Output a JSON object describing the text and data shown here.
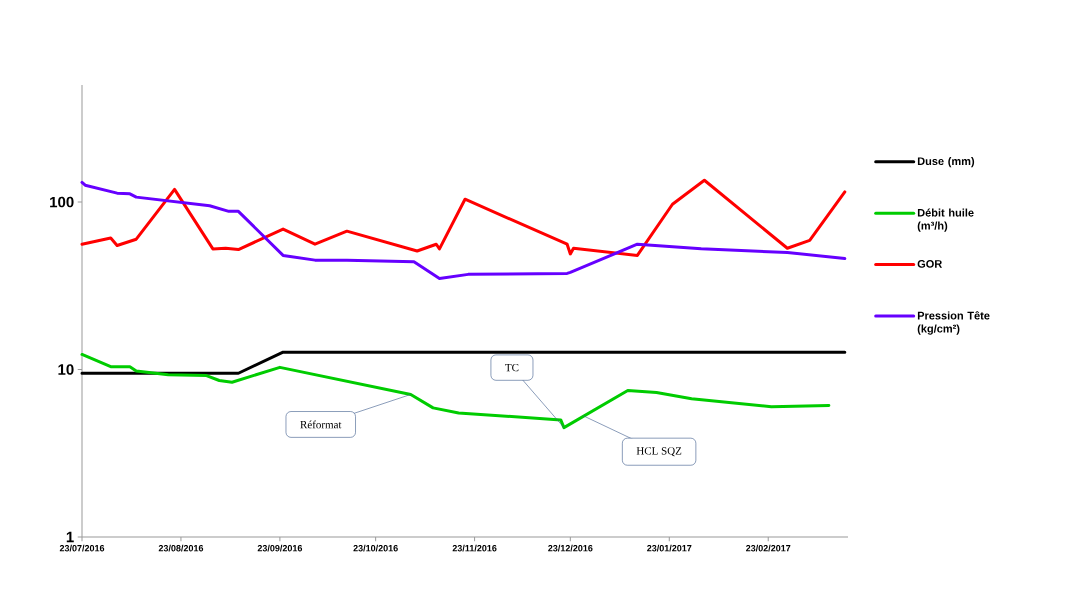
{
  "chart_data": {
    "type": "line",
    "log": "y",
    "legend": "right",
    "grid": false,
    "marker": "none",
    "line_style": "solid",
    "xlim": [
      "2016-07-23",
      "2017-03-20"
    ],
    "ylim": [
      1,
      500
    ],
    "yticks": [
      1,
      10,
      100
    ],
    "xticks": [
      {
        "value": "2016-07-23",
        "label": "23/07/2016"
      },
      {
        "value": "2016-08-23",
        "label": "23/08/2016"
      },
      {
        "value": "2016-09-23",
        "label": "23/09/2016"
      },
      {
        "value": "2016-10-23",
        "label": "23/10/2016"
      },
      {
        "value": "2016-11-23",
        "label": "23/11/2016"
      },
      {
        "value": "2016-12-23",
        "label": "23/12/2016"
      },
      {
        "value": "2017-01-23",
        "label": "23/01/2017"
      },
      {
        "value": "2017-02-23",
        "label": "23/02/2017"
      }
    ],
    "series": [
      {
        "name": "Duse (mm)",
        "color": "#000000",
        "x": [
          "2016-07-23",
          "2016-09-10",
          "2016-09-24",
          "2017-03-19"
        ],
        "values": [
          9.5,
          9.5,
          12.7,
          12.7
        ]
      },
      {
        "name": "Débit huile (m³/h)",
        "color": "#00cc00",
        "x": [
          "2016-07-23",
          "2016-08-01",
          "2016-08-07",
          "2016-08-09",
          "2016-08-19",
          "2016-08-31",
          "2016-09-04",
          "2016-09-08",
          "2016-09-23",
          "2016-11-03",
          "2016-11-10",
          "2016-11-18",
          "2016-12-20",
          "2016-12-21",
          "2017-01-10",
          "2017-01-19",
          "2017-01-30",
          "2017-02-24",
          "2017-03-14"
        ],
        "values": [
          12.3,
          10.4,
          10.4,
          9.8,
          9.3,
          9.2,
          8.6,
          8.4,
          10.3,
          7.1,
          5.9,
          5.5,
          5.0,
          4.5,
          7.5,
          7.3,
          6.7,
          6.0,
          6.1
        ]
      },
      {
        "name": "GOR",
        "color": "#ff0000",
        "x": [
          "2016-07-23",
          "2016-08-01",
          "2016-08-03",
          "2016-08-09",
          "2016-08-21",
          "2016-09-02",
          "2016-09-06",
          "2016-09-10",
          "2016-09-24",
          "2016-10-04",
          "2016-10-14",
          "2016-11-05",
          "2016-11-11",
          "2016-11-12",
          "2016-11-20",
          "2016-12-22",
          "2016-12-23",
          "2016-12-24",
          "2017-01-13",
          "2017-01-24",
          "2017-02-03",
          "2017-03-01",
          "2017-03-08",
          "2017-03-19"
        ],
        "values": [
          56,
          61,
          55,
          60,
          119,
          52.5,
          53,
          52,
          69,
          56,
          67,
          51,
          56,
          52.5,
          104,
          56,
          49,
          53,
          48,
          97,
          135,
          53,
          59,
          115
        ]
      },
      {
        "name": "Pression Tête (kg/cm²)",
        "color": "#6600ff",
        "x": [
          "2016-07-23",
          "2016-07-24",
          "2016-08-03",
          "2016-08-07",
          "2016-08-09",
          "2016-09-01",
          "2016-09-07",
          "2016-09-10",
          "2016-09-24",
          "2016-10-04",
          "2016-10-14",
          "2016-11-04",
          "2016-11-12",
          "2016-11-21",
          "2016-12-22",
          "2016-12-23",
          "2017-01-13",
          "2017-02-02",
          "2017-03-01",
          "2017-03-19"
        ],
        "values": [
          131,
          126,
          113,
          112,
          107,
          95,
          88,
          88,
          48,
          45,
          45,
          44,
          35,
          37,
          37.5,
          38,
          56,
          52.6,
          50,
          46
        ]
      }
    ],
    "annotations": [
      {
        "text": "Réformat",
        "x": "2016-11-03",
        "y": 7.1
      },
      {
        "text": "TC",
        "x": "2016-12-21",
        "y": 4.5
      },
      {
        "text": "HCL SQZ",
        "x": "2016-12-27",
        "y": 5.3
      }
    ]
  }
}
